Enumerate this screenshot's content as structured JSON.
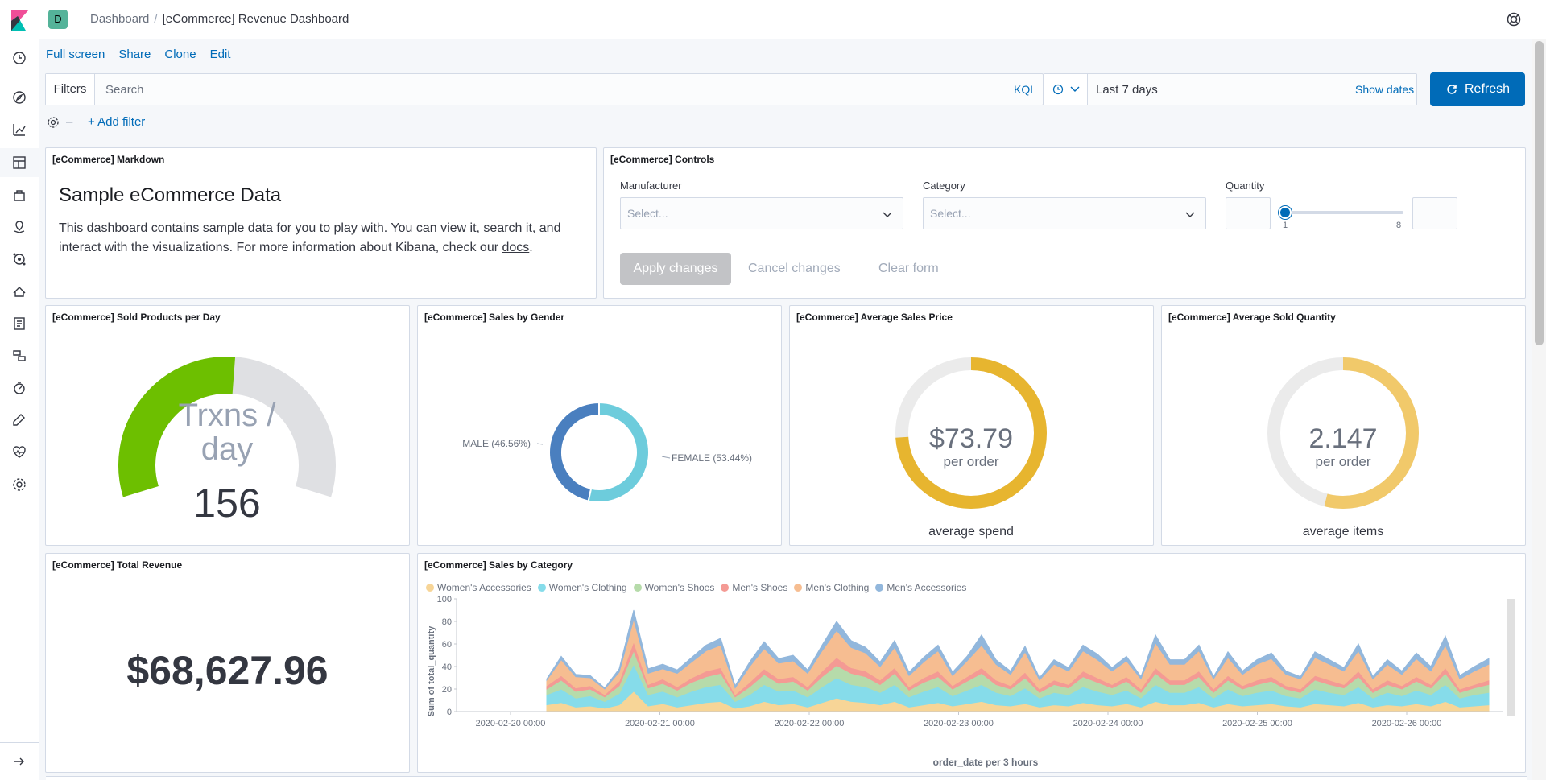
{
  "header": {
    "space_initial": "D",
    "breadcrumbs": [
      "Dashboard",
      "[eCommerce] Revenue Dashboard"
    ]
  },
  "nav": {
    "icons": [
      "clock-icon",
      "compass-icon",
      "visualize-icon",
      "dashboard-icon",
      "canvas-icon",
      "maps-icon",
      "ml-icon",
      "infrastructure-icon",
      "logs-icon",
      "apm-icon",
      "uptime-icon",
      "dev-tools-icon",
      "monitoring-icon",
      "management-icon"
    ],
    "collapse_icon": "arrow-right-icon"
  },
  "toplinks": {
    "full_screen": "Full screen",
    "share": "Share",
    "clone": "Clone",
    "edit": "Edit"
  },
  "query": {
    "filters_label": "Filters",
    "search_placeholder": "Search",
    "kql": "KQL",
    "date_range": "Last 7 days",
    "show_dates": "Show dates",
    "refresh": "Refresh",
    "add_filter": "+ Add filter"
  },
  "markdown": {
    "title": "[eCommerce] Markdown",
    "heading": "Sample eCommerce Data",
    "body": "This dashboard contains sample data for you to play with. You can view it, search it, and interact with the visualizations. For more information about Kibana, check our",
    "link": "docs",
    "end": "."
  },
  "controls": {
    "title": "[eCommerce] Controls",
    "manufacturer_label": "Manufacturer",
    "category_label": "Category",
    "quantity_label": "Quantity",
    "select_placeholder": "Select...",
    "slider_min": "1",
    "slider_max": "8",
    "apply": "Apply changes",
    "cancel": "Cancel changes",
    "clear": "Clear form"
  },
  "gauge": {
    "title": "[eCommerce] Sold Products per Day",
    "label_line1": "Trxns /",
    "label_line2": "day",
    "value": "156",
    "fraction": 0.52,
    "fill_color": "#6dbf00"
  },
  "gender": {
    "title": "[eCommerce] Sales by Gender",
    "male_label": "MALE (46.56%)",
    "female_label": "FEMALE (53.44%)",
    "male_pct": 46.56,
    "female_pct": 53.44,
    "male_color": "#4a7fbf",
    "female_color": "#6dccdc"
  },
  "avg_price": {
    "title": "[eCommerce] Average Sales Price",
    "value": "$73.79",
    "unit": "per order",
    "caption": "average spend",
    "fraction": 0.74,
    "color": "#e7b52f"
  },
  "avg_qty": {
    "title": "[eCommerce] Average Sold Quantity",
    "value": "2.147",
    "unit": "per order",
    "caption": "average items",
    "fraction": 0.54,
    "color": "#f1c96a"
  },
  "revenue": {
    "title": "[eCommerce] Total Revenue",
    "value": "$68,627.96"
  },
  "category": {
    "title": "[eCommerce] Sales by Category"
  },
  "chart_data": {
    "type": "area",
    "stacked": true,
    "ylabel": "Sum of total_quantity",
    "xlabel": "order_date per 3 hours",
    "ylim": [
      0,
      100
    ],
    "yticks": [
      0,
      20,
      40,
      60,
      80,
      100
    ],
    "xticks": [
      "2020-02-20 00:00",
      "2020-02-21 00:00",
      "2020-02-22 00:00",
      "2020-02-23 00:00",
      "2020-02-24 00:00",
      "2020-02-25 00:00",
      "2020-02-26 00:00"
    ],
    "legend_position": "top",
    "series": [
      {
        "name": "Women's Accessories",
        "color": "#f7d597",
        "values": [
          6,
          8,
          4,
          5,
          3,
          6,
          18,
          5,
          7,
          4,
          6,
          8,
          9,
          3,
          5,
          9,
          6,
          7,
          4,
          8,
          12,
          9,
          8,
          6,
          9,
          4,
          6,
          8,
          5,
          7,
          9,
          6,
          5,
          7,
          4,
          6,
          5,
          8,
          6,
          5,
          7,
          4,
          9,
          6,
          6,
          8,
          4,
          7,
          5,
          6,
          7,
          5,
          4,
          7,
          6,
          5,
          8,
          4,
          6,
          5,
          7,
          5,
          9,
          4,
          5,
          6
        ]
      },
      {
        "name": "Women's Clothing",
        "color": "#86dcea",
        "values": [
          9,
          12,
          8,
          9,
          6,
          10,
          24,
          10,
          11,
          9,
          12,
          14,
          15,
          6,
          10,
          15,
          12,
          12,
          9,
          14,
          18,
          15,
          14,
          11,
          15,
          9,
          12,
          14,
          9,
          12,
          15,
          11,
          9,
          14,
          8,
          11,
          10,
          14,
          12,
          10,
          12,
          8,
          15,
          11,
          11,
          14,
          8,
          13,
          9,
          11,
          12,
          9,
          8,
          13,
          11,
          10,
          14,
          8,
          11,
          9,
          12,
          10,
          15,
          8,
          10,
          11
        ]
      },
      {
        "name": "Women's Shoes",
        "color": "#b6dbaa",
        "values": [
          5,
          8,
          6,
          6,
          4,
          7,
          12,
          6,
          7,
          6,
          8,
          9,
          10,
          4,
          7,
          9,
          7,
          8,
          6,
          9,
          11,
          10,
          9,
          7,
          10,
          6,
          8,
          9,
          6,
          8,
          10,
          7,
          6,
          9,
          5,
          7,
          6,
          9,
          8,
          6,
          8,
          5,
          10,
          7,
          7,
          9,
          5,
          8,
          6,
          7,
          8,
          6,
          5,
          8,
          7,
          6,
          9,
          5,
          7,
          6,
          8,
          6,
          10,
          5,
          6,
          7
        ]
      },
      {
        "name": "Men's Shoes",
        "color": "#f49a94",
        "values": [
          3,
          4,
          3,
          3,
          2,
          4,
          8,
          3,
          4,
          3,
          4,
          5,
          5,
          2,
          4,
          5,
          4,
          4,
          3,
          5,
          7,
          5,
          5,
          4,
          5,
          3,
          4,
          5,
          3,
          4,
          5,
          4,
          3,
          5,
          3,
          4,
          3,
          5,
          4,
          3,
          4,
          3,
          5,
          4,
          4,
          5,
          3,
          4,
          3,
          4,
          4,
          3,
          3,
          4,
          4,
          3,
          5,
          3,
          4,
          3,
          4,
          3,
          5,
          3,
          3,
          4
        ]
      },
      {
        "name": "Men's Clothing",
        "color": "#f6bd91",
        "values": [
          5,
          14,
          10,
          7,
          5,
          8,
          20,
          10,
          9,
          12,
          14,
          18,
          20,
          6,
          14,
          18,
          14,
          14,
          12,
          18,
          24,
          18,
          16,
          12,
          18,
          10,
          14,
          18,
          9,
          14,
          20,
          14,
          10,
          18,
          8,
          14,
          12,
          18,
          16,
          12,
          14,
          9,
          22,
          14,
          14,
          18,
          9,
          16,
          10,
          14,
          16,
          10,
          9,
          16,
          14,
          12,
          18,
          9,
          14,
          10,
          16,
          12,
          20,
          9,
          12,
          14
        ]
      },
      {
        "name": "Men's Accessories",
        "color": "#92b7dc",
        "values": [
          1,
          3,
          2,
          2,
          1,
          3,
          8,
          4,
          4,
          3,
          4,
          5,
          6,
          2,
          4,
          6,
          4,
          5,
          3,
          5,
          8,
          6,
          5,
          4,
          6,
          3,
          4,
          5,
          3,
          4,
          9,
          4,
          3,
          5,
          2,
          4,
          3,
          5,
          5,
          3,
          4,
          2,
          7,
          4,
          4,
          5,
          2,
          5,
          3,
          4,
          5,
          3,
          2,
          5,
          4,
          3,
          6,
          2,
          4,
          3,
          5,
          4,
          8,
          3,
          4,
          5
        ]
      }
    ]
  }
}
